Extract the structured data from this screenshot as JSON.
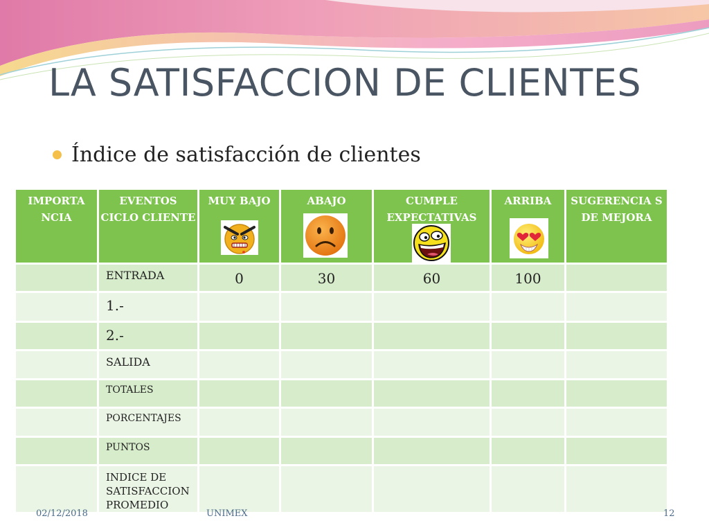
{
  "slide": {
    "title": "LA SATISFACCION DE CLIENTES",
    "bullet": "Índice de satisfacción de clientes"
  },
  "table": {
    "headers": {
      "importancia": "IMPORTA NCIA",
      "eventos": "EVENTOS CICLO CLIENTE",
      "muy_bajo": "MUY BAJO",
      "abajo": "ABAJO",
      "cumple": "CUMPLE EXPECTATIVAS",
      "arriba": "ARRIBA",
      "sugerencias": "SUGERENCIA S DE MEJORA"
    },
    "icons": {
      "muy_bajo": "angry-face-icon",
      "abajo": "sad-face-icon",
      "cumple": "laughing-face-icon",
      "arriba": "heart-eyes-face-icon"
    },
    "rows": [
      {
        "evento": "ENTRADA",
        "muy_bajo": "0",
        "abajo": "30",
        "cumple": "60",
        "arriba": "100"
      },
      {
        "evento": "1.-"
      },
      {
        "evento": "2.-"
      },
      {
        "evento": "SALIDA"
      },
      {
        "evento": "TOTALES"
      },
      {
        "evento": "PORCENTAJES"
      },
      {
        "evento": "PUNTOS"
      },
      {
        "evento": "INDICE DE SATISFACCION PROMEDIO"
      }
    ]
  },
  "footer": {
    "date": "02/12/2018",
    "org": "UNIMEX",
    "page": "12"
  },
  "colors": {
    "header_green": "#7dc34e",
    "row_dark": "#d7eccb",
    "row_light": "#ebf5e5",
    "bullet": "#f4c04a"
  }
}
